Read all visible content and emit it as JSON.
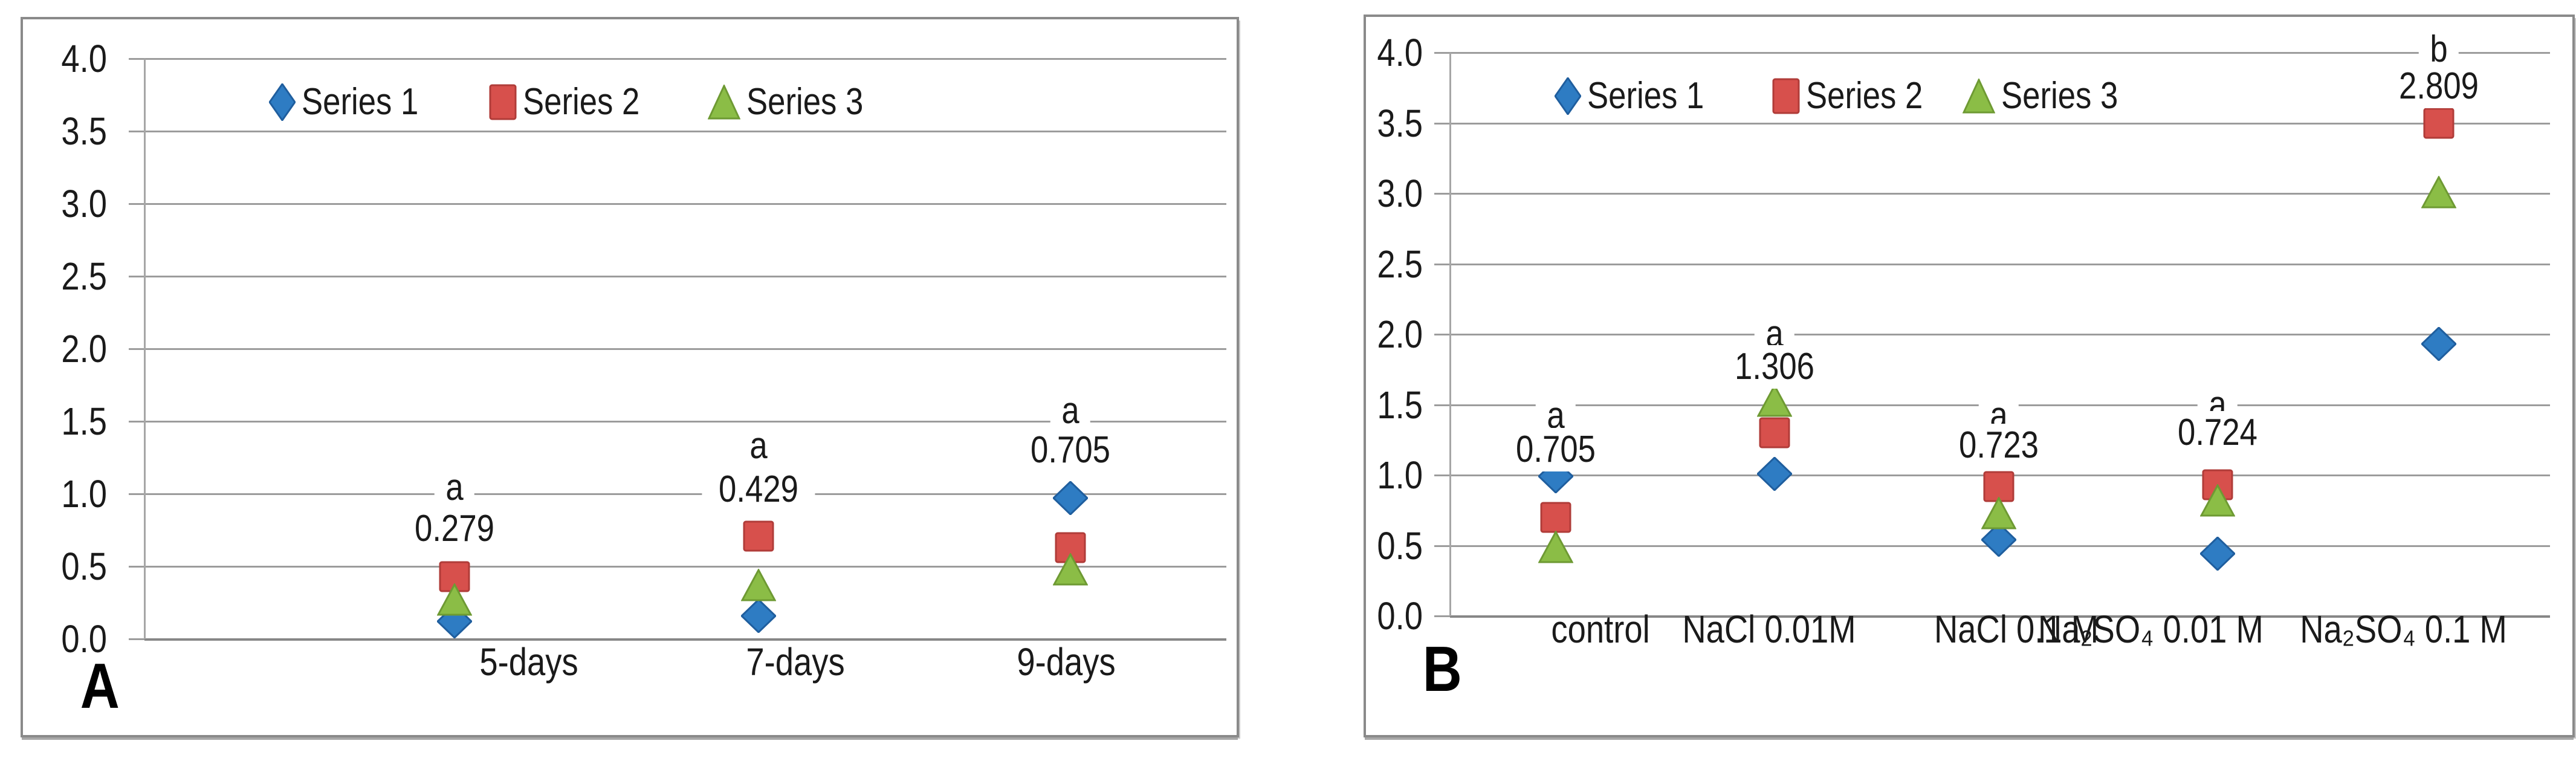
{
  "colors": {
    "series1_blue": "#2E7CC3",
    "series1_edge": "#1F5E9E",
    "series2_red": "#D7504C",
    "series2_edge": "#B03C39",
    "series3_green": "#8BBD46",
    "series3_edge": "#6E9A33",
    "gridline": "#9C9C9C",
    "axis": "#878787",
    "panel_border": "#8A8A8A",
    "text": "#1A1A1A",
    "background": "#FFFFFF"
  },
  "chart_data": [
    {
      "type": "scatter",
      "panel_label": "A",
      "title": "",
      "xlabel": "",
      "ylabel": "",
      "ylim": [
        0.0,
        4.0
      ],
      "ytick_step": 0.5,
      "grid": true,
      "legend_position": "top-center",
      "y_ticks": [
        "4.0",
        "3.5",
        "3.0",
        "2.5",
        "2.0",
        "1.5",
        "1.0",
        "0.5",
        "0.0"
      ],
      "categories": [
        "5-days",
        "7-days",
        "9-days"
      ],
      "series": [
        {
          "name": "Series 1",
          "marker": "diamond",
          "color": "#2E7CC3",
          "edge": "#1F5E9E",
          "values": [
            0.12,
            0.16,
            0.97
          ]
        },
        {
          "name": "Series 2",
          "marker": "square",
          "color": "#D7504C",
          "edge": "#B03C39",
          "values": [
            0.43,
            0.71,
            0.63
          ]
        },
        {
          "name": "Series 3",
          "marker": "triangle",
          "color": "#8BBD46",
          "edge": "#6E9A33",
          "values": [
            0.27,
            0.37,
            0.48
          ]
        }
      ],
      "annotations": [
        {
          "letter": "a",
          "value": "0.279",
          "letter_y": 1.04,
          "value_y": 0.76
        },
        {
          "letter": "a",
          "value": "0.429",
          "letter_y": 1.33,
          "value_y": 1.03
        },
        {
          "letter": "a",
          "value": "0.705",
          "letter_y": 1.57,
          "value_y": 1.3
        }
      ]
    },
    {
      "type": "scatter",
      "panel_label": "B",
      "title": "",
      "xlabel": "",
      "ylabel": "",
      "ylim": [
        0.0,
        4.0
      ],
      "ytick_step": 0.5,
      "grid": true,
      "legend_position": "top-center",
      "y_ticks": [
        "4.0",
        "3.5",
        "3.0",
        "2.5",
        "2.0",
        "1.5",
        "1.0",
        "0.5",
        "0.0"
      ],
      "categories": [
        "control",
        "NaCl 0.01M",
        "NaCl 0.1 M",
        "Na₂SO₄ 0.01 M",
        "Na₂SO₄ 0.1 M"
      ],
      "series": [
        {
          "name": "Series 1",
          "marker": "diamond",
          "color": "#2E7CC3",
          "edge": "#1F5E9E",
          "values": [
            0.99,
            1.01,
            0.54,
            0.44,
            1.93
          ]
        },
        {
          "name": "Series 2",
          "marker": "square",
          "color": "#D7504C",
          "edge": "#B03C39",
          "values": [
            0.7,
            1.3,
            0.92,
            0.93,
            3.5
          ]
        },
        {
          "name": "Series 3",
          "marker": "triangle",
          "color": "#8BBD46",
          "edge": "#6E9A33",
          "values": [
            0.49,
            1.53,
            0.73,
            0.82,
            3.01
          ]
        }
      ],
      "annotations": [
        {
          "letter": "a",
          "value": "0.705",
          "letter_y": 1.42,
          "value_y": 1.18
        },
        {
          "letter": "a",
          "value": "1.306",
          "letter_y": 2.0,
          "value_y": 1.77
        },
        {
          "letter": "a",
          "value": "0.723",
          "letter_y": 1.42,
          "value_y": 1.21
        },
        {
          "letter": "a",
          "value": "0.724",
          "letter_y": 1.5,
          "value_y": 1.3
        },
        {
          "letter": "b",
          "value": "2.809",
          "letter_y": 4.02,
          "value_y": 3.76
        }
      ]
    }
  ]
}
